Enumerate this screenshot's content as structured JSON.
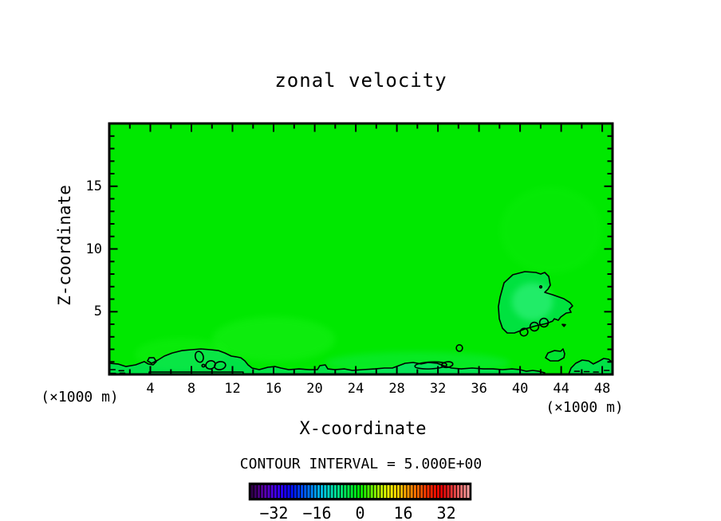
{
  "title": "zonal velocity",
  "contour_note": "CONTOUR INTERVAL = 5.000E+00",
  "plot": {
    "x_axis": {
      "label": "X-coordinate",
      "unit_left": "(×1000 m)",
      "unit_right": "(×1000 m)",
      "min": 0,
      "max": 49,
      "major_ticks": [
        4,
        8,
        12,
        16,
        20,
        24,
        28,
        32,
        36,
        40,
        44,
        48
      ],
      "minor_step": 2
    },
    "z_axis": {
      "label": "Z-coordinate",
      "min": 0,
      "max": 20,
      "major_ticks": [
        5,
        10,
        15
      ],
      "minor_step": 1
    }
  },
  "colors": {
    "field": "#00e800",
    "subzero": "#00dc8c",
    "contour": "#000000",
    "background": "#ffffff"
  },
  "colorbar": {
    "segments": 66,
    "value_range": [
      -41,
      41
    ],
    "tick_values": [
      -32,
      -16,
      0,
      16,
      32
    ],
    "tick_labels": [
      "−32",
      "−16",
      "0",
      "16",
      "32"
    ],
    "stops": [
      "#30004a",
      "#48007e",
      "#5800b4",
      "#4b00e0",
      "#3300f4",
      "#1a00ff",
      "#0014ff",
      "#003cff",
      "#0064ff",
      "#008cf8",
      "#00b4f0",
      "#00d2d2",
      "#00e0a8",
      "#00e67c",
      "#00ea50",
      "#00ee28",
      "#00f000",
      "#3cf400",
      "#78f800",
      "#b4fc00",
      "#f0ff00",
      "#ffe400",
      "#ffc000",
      "#ff9c00",
      "#ff7800",
      "#ff5400",
      "#ff3000",
      "#f41400",
      "#e60000",
      "#e41e1e",
      "#ea4646",
      "#f17070",
      "#f89c9c"
    ]
  },
  "chart_data": {
    "type": "heatmap",
    "subtype": "filled-contour",
    "title": "zonal velocity",
    "xlabel": "X-coordinate (×1000 m)",
    "ylabel": "Z-coordinate (×1000 m)",
    "x_range": [
      0,
      49
    ],
    "z_range": [
      0,
      20
    ],
    "contour_interval": 5.0,
    "colorbar_labels": [
      -32,
      -16,
      0,
      16,
      32
    ],
    "description": "Zonal velocity field, nearly uniform in the 0 to +5 band (green). The zero contour (solid black) hugs the surface below z≈2 and encloses a weak pocket near x≈38–45, z≈3–8; dashed bits near the bottom corners mark slightly negative values.",
    "zero_contour_paths": [
      {
        "name": "surface-zero-contour",
        "closed": false,
        "points": [
          [
            0.0,
            0.89
          ],
          [
            0.85,
            0.83
          ],
          [
            1.63,
            0.63
          ],
          [
            2.56,
            0.76
          ],
          [
            3.42,
            1.02
          ],
          [
            3.8,
            0.83
          ],
          [
            4.27,
            0.76
          ],
          [
            4.58,
            1.02
          ],
          [
            4.35,
            1.33
          ],
          [
            3.88,
            1.33
          ],
          [
            3.73,
            1.08
          ],
          [
            4.12,
            0.89
          ],
          [
            4.74,
            1.14
          ],
          [
            5.36,
            1.46
          ],
          [
            6.13,
            1.71
          ],
          [
            7.07,
            1.9
          ],
          [
            8.0,
            1.97
          ],
          [
            8.93,
            2.03
          ],
          [
            9.86,
            1.97
          ],
          [
            10.64,
            1.9
          ],
          [
            11.26,
            1.71
          ],
          [
            11.88,
            1.46
          ],
          [
            12.35,
            1.4
          ],
          [
            12.81,
            1.33
          ],
          [
            13.2,
            1.08
          ],
          [
            13.51,
            0.76
          ],
          [
            13.9,
            0.51
          ],
          [
            14.6,
            0.38
          ],
          [
            15.45,
            0.57
          ],
          [
            16.15,
            0.63
          ],
          [
            16.7,
            0.51
          ],
          [
            17.47,
            0.38
          ],
          [
            18.48,
            0.44
          ],
          [
            19.49,
            0.38
          ],
          [
            20.27,
            0.38
          ],
          [
            20.5,
            0.7
          ],
          [
            21.04,
            0.76
          ],
          [
            21.28,
            0.44
          ],
          [
            21.97,
            0.38
          ],
          [
            22.91,
            0.44
          ],
          [
            23.68,
            0.32
          ],
          [
            24.69,
            0.38
          ],
          [
            25.86,
            0.44
          ],
          [
            26.79,
            0.51
          ],
          [
            27.57,
            0.51
          ],
          [
            28.19,
            0.7
          ],
          [
            28.81,
            0.89
          ],
          [
            29.59,
            0.95
          ],
          [
            30.36,
            0.83
          ],
          [
            31.06,
            0.95
          ],
          [
            31.92,
            0.89
          ],
          [
            32.54,
            0.7
          ],
          [
            33.31,
            0.51
          ],
          [
            34.25,
            0.44
          ],
          [
            35.33,
            0.51
          ],
          [
            36.42,
            0.44
          ],
          [
            37.35,
            0.44
          ],
          [
            38.28,
            0.38
          ],
          [
            39.21,
            0.44
          ],
          [
            39.99,
            0.38
          ],
          [
            40.61,
            0.25
          ],
          [
            41.23,
            0.32
          ],
          [
            41.85,
            0.25
          ],
          [
            42.4,
            0.13
          ]
        ]
      },
      {
        "name": "near-surface-flat-contour",
        "closed": false,
        "points": [
          [
            3.88,
            0.0
          ],
          [
            3.88,
            0.19
          ],
          [
            13.04,
            0.19
          ],
          [
            13.04,
            0.0
          ]
        ]
      },
      {
        "name": "bottom-right-contour",
        "closed": false,
        "points": [
          [
            44.72,
            0.0
          ],
          [
            44.96,
            0.51
          ],
          [
            45.42,
            0.89
          ],
          [
            46.04,
            1.14
          ],
          [
            46.67,
            1.08
          ],
          [
            47.13,
            0.83
          ],
          [
            47.6,
            1.02
          ],
          [
            48.14,
            1.27
          ],
          [
            48.61,
            1.21
          ],
          [
            49.0,
            0.95
          ]
        ]
      }
    ],
    "closed_contours": [
      {
        "name": "negative-pocket-blob",
        "points": [
          [
            37.89,
            5.4
          ],
          [
            38.05,
            6.16
          ],
          [
            38.44,
            7.3
          ],
          [
            39.29,
            7.94
          ],
          [
            40.46,
            8.19
          ],
          [
            41.54,
            8.13
          ],
          [
            42.01,
            8.0
          ],
          [
            42.4,
            8.13
          ],
          [
            42.79,
            7.81
          ],
          [
            42.94,
            7.11
          ],
          [
            42.71,
            6.79
          ],
          [
            42.4,
            6.54
          ],
          [
            43.17,
            6.35
          ],
          [
            44.26,
            6.03
          ],
          [
            44.88,
            5.71
          ],
          [
            45.11,
            5.46
          ],
          [
            44.8,
            5.21
          ],
          [
            44.96,
            4.95
          ],
          [
            44.49,
            4.89
          ],
          [
            43.95,
            4.57
          ],
          [
            43.72,
            4.32
          ],
          [
            43.33,
            4.44
          ],
          [
            43.17,
            4.25
          ],
          [
            42.55,
            4.06
          ],
          [
            41.54,
            3.87
          ],
          [
            40.46,
            3.62
          ],
          [
            39.45,
            3.3
          ],
          [
            38.75,
            3.3
          ],
          [
            38.28,
            3.68
          ],
          [
            37.97,
            4.44
          ]
        ]
      },
      {
        "name": "small-right-blob",
        "points": [
          [
            42.48,
            1.33
          ],
          [
            42.71,
            1.71
          ],
          [
            43.33,
            1.9
          ],
          [
            43.95,
            1.84
          ],
          [
            44.18,
            2.03
          ],
          [
            44.34,
            1.65
          ],
          [
            44.26,
            1.33
          ],
          [
            43.72,
            1.08
          ],
          [
            42.94,
            1.08
          ]
        ]
      },
      {
        "name": "tiny-triangle-mark",
        "points": [
          [
            44.1,
            3.99
          ],
          [
            44.42,
            3.97
          ],
          [
            44.28,
            3.82
          ]
        ]
      }
    ],
    "ellipse_contours": [
      {
        "cx": 8.77,
        "cz": 1.4,
        "rx": 0.39,
        "rz": 0.44,
        "rot": -15
      },
      {
        "cx": 9.16,
        "cz": 0.7,
        "rx": 0.14,
        "rz": 0.1,
        "rot": 0
      },
      {
        "cx": 9.86,
        "cz": 0.76,
        "rx": 0.47,
        "rz": 0.32,
        "rot": -20
      },
      {
        "cx": 10.79,
        "cz": 0.7,
        "rx": 0.54,
        "rz": 0.32,
        "rot": -10
      },
      {
        "cx": 31.3,
        "cz": 0.72,
        "rx": 1.55,
        "rz": 0.27,
        "rot": -3
      },
      {
        "cx": 32.9,
        "cz": 0.78,
        "rx": 0.55,
        "rz": 0.22,
        "rot": -8
      },
      {
        "cx": 34.09,
        "cz": 2.1,
        "rx": 0.3,
        "rz": 0.26,
        "rot": 0
      },
      {
        "cx": 40.38,
        "cz": 3.37,
        "rx": 0.38,
        "rz": 0.3,
        "rot": -35
      },
      {
        "cx": 41.39,
        "cz": 3.81,
        "rx": 0.42,
        "rz": 0.34,
        "rot": -35
      },
      {
        "cx": 42.32,
        "cz": 4.13,
        "rx": 0.42,
        "rz": 0.34,
        "rot": -35
      },
      {
        "cx": 42.01,
        "cz": 6.98,
        "rx": 0.1,
        "rz": 0.08,
        "rot": 0
      }
    ],
    "dash_segments": [
      [
        [
          0.1,
          0.38
        ],
        [
          0.75,
          0.38
        ]
      ],
      [
        [
          0.95,
          0.3
        ],
        [
          1.55,
          0.3
        ]
      ],
      [
        [
          0.15,
          0.08
        ],
        [
          0.8,
          0.08
        ]
      ],
      [
        [
          1.05,
          0.1
        ],
        [
          1.6,
          0.1
        ]
      ],
      [
        [
          45.3,
          0.25
        ],
        [
          45.95,
          0.25
        ]
      ],
      [
        [
          46.25,
          0.22
        ],
        [
          46.85,
          0.22
        ]
      ],
      [
        [
          47.15,
          0.19
        ],
        [
          47.7,
          0.19
        ]
      ],
      [
        [
          48.2,
          0.32
        ],
        [
          48.8,
          0.32
        ]
      ]
    ],
    "fills": [
      {
        "kind": "under_line",
        "ref_open": 0,
        "color": "#00dc8c",
        "opacity": 0.5
      },
      {
        "kind": "under_line",
        "ref_open": 2,
        "color": "#00dc8c",
        "opacity": 0.5
      },
      {
        "kind": "polygon_ref",
        "ref_closed": 0,
        "color": "#00dc8c",
        "opacity": 0.45
      },
      {
        "kind": "polygon_ref",
        "ref_closed": 1,
        "color": "#00dc8c",
        "opacity": 0.35
      },
      {
        "kind": "ellipse",
        "cx": 16.0,
        "cz": 2.8,
        "rx": 6.0,
        "rz": 1.8,
        "color": "#40ff40",
        "opacity": 0.2
      },
      {
        "kind": "ellipse",
        "cx": 7.0,
        "cz": 1.6,
        "rx": 4.5,
        "rz": 1.3,
        "color": "#40ff40",
        "opacity": 0.15
      },
      {
        "kind": "ellipse",
        "cx": 41.2,
        "cz": 5.8,
        "rx": 2.0,
        "rz": 1.5,
        "color": "#60ffb4",
        "opacity": 0.35
      },
      {
        "kind": "ellipse",
        "cx": 43.0,
        "cz": 11.5,
        "rx": 5.0,
        "rz": 3.5,
        "color": "#30f830",
        "opacity": 0.1
      },
      {
        "kind": "ellipse",
        "cx": 30.0,
        "cz": 0.9,
        "rx": 9.0,
        "rz": 0.9,
        "color": "#20f0a0",
        "opacity": 0.22
      }
    ]
  }
}
